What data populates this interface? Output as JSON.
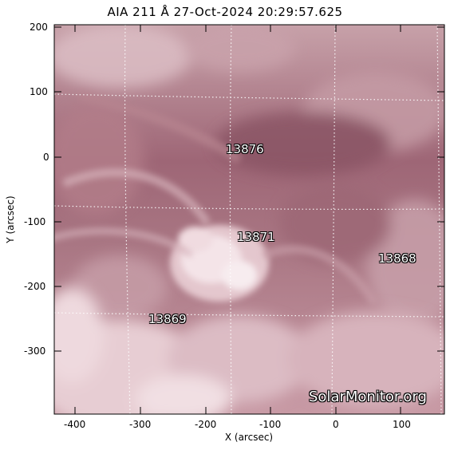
{
  "image": {
    "title": "AIA 211 Å 27-Oct-2024 20:29:57.625",
    "x_axis_label": "X (arcsec)",
    "y_axis_label": "Y (arcsec)",
    "x_ticks": [
      "-400",
      "-300",
      "-200",
      "-100",
      "0",
      "100"
    ],
    "y_ticks": [
      "200",
      "100",
      "0",
      "-100",
      "-200",
      "-300"
    ],
    "active_regions": [
      "13876",
      "13871",
      "13868",
      "13869"
    ],
    "watermark": "SolarMonitor.org",
    "colors": {
      "plasma_base": "#b07c86",
      "plasma_bright": "#f6e6ea",
      "plasma_dark": "#8b5766"
    }
  }
}
